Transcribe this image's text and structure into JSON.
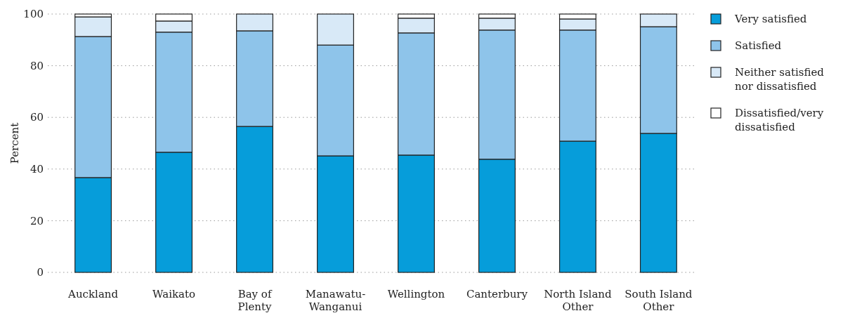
{
  "chart_data": {
    "type": "bar",
    "stacked": true,
    "ylabel": "Percent",
    "categories": [
      "Auckland",
      "Waikato",
      "Bay of Plenty",
      "Manawatu-Wanganui",
      "Wellington",
      "Canterbury",
      "North Island Other",
      "South Island Other"
    ],
    "series": [
      {
        "name": "Very satisfied",
        "color": "#069dda",
        "values": [
          36.7,
          46.5,
          56.5,
          45.1,
          45.4,
          43.8,
          50.8,
          53.8
        ]
      },
      {
        "name": "Satisfied",
        "color": "#8ec4ea",
        "values": [
          54.6,
          46.5,
          37,
          42.9,
          47.3,
          50,
          43,
          41.3
        ]
      },
      {
        "name": "Neither satisfied nor dissatisfied",
        "color": "#d8e9f7",
        "values": [
          7.6,
          4.3,
          6.5,
          12,
          5.7,
          4.6,
          4.3,
          4.9
        ]
      },
      {
        "name": "Dissatisfied/very dissatisfied",
        "color": "#ffffff",
        "values": [
          1.1,
          2.7,
          0,
          0,
          1.6,
          1.6,
          1.9,
          0
        ]
      }
    ],
    "ylim": [
      0,
      100
    ],
    "yticks": [
      0,
      20,
      40,
      60,
      80,
      100
    ],
    "grid": "y",
    "legend": "right"
  }
}
